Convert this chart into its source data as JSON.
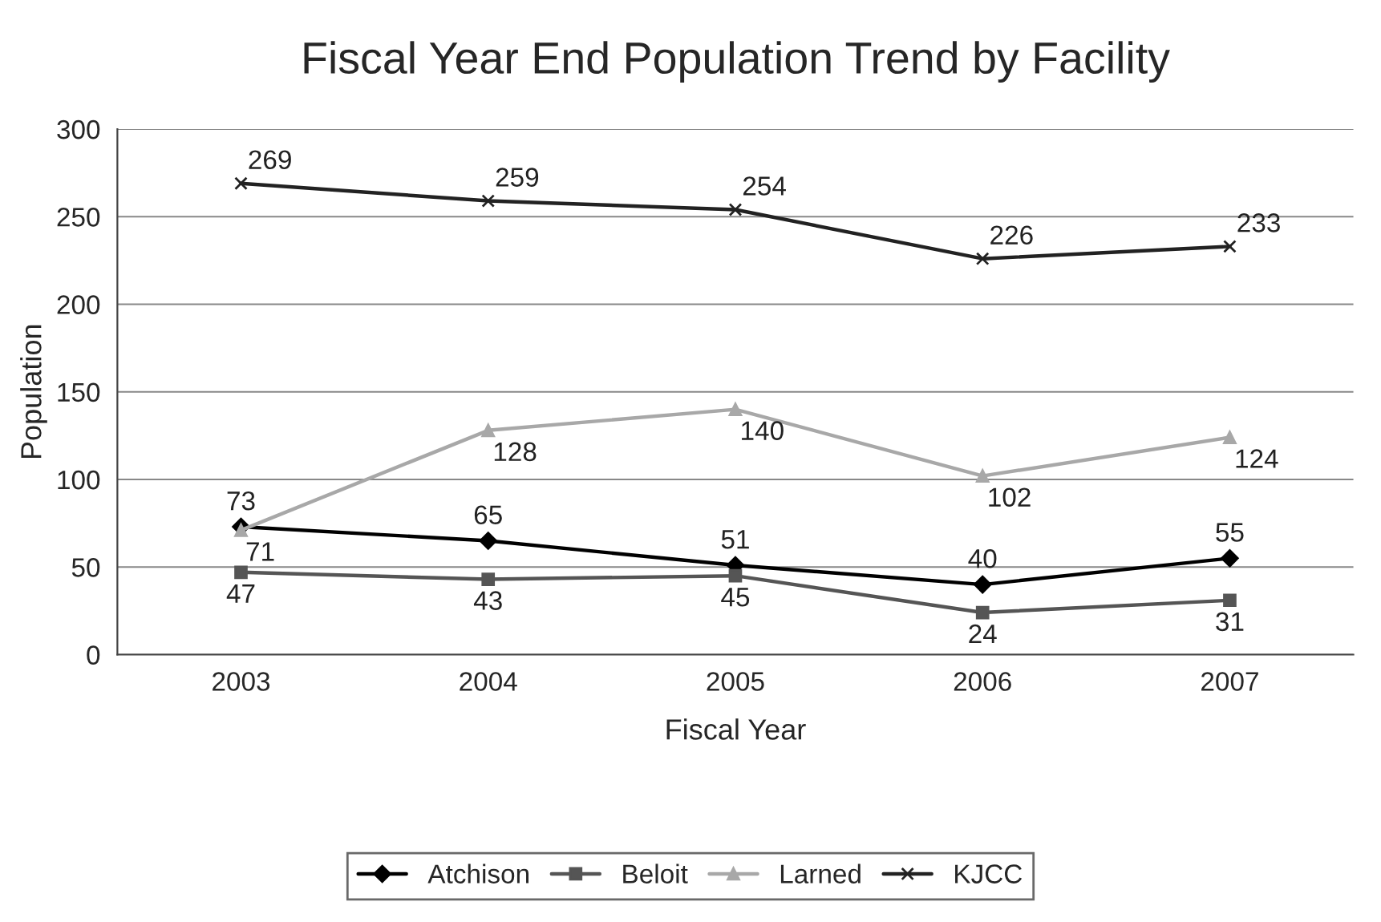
{
  "chart_data": {
    "type": "line",
    "title": "Fiscal Year End Population Trend by Facility",
    "xlabel": "Fiscal Year",
    "ylabel": "Population",
    "categories": [
      "2003",
      "2004",
      "2005",
      "2006",
      "2007"
    ],
    "series": [
      {
        "name": "Atchison",
        "color": "#000000",
        "marker": "diamond",
        "values": [
          73,
          65,
          51,
          40,
          55
        ]
      },
      {
        "name": "Beloit",
        "color": "#555555",
        "marker": "square",
        "values": [
          47,
          43,
          45,
          24,
          31
        ]
      },
      {
        "name": "Larned",
        "color": "#a8a8a8",
        "marker": "triangle",
        "values": [
          71,
          128,
          140,
          102,
          124
        ]
      },
      {
        "name": "KJCC",
        "color": "#222222",
        "marker": "cross",
        "values": [
          269,
          259,
          254,
          226,
          233
        ]
      }
    ],
    "ylim": [
      0,
      300
    ],
    "yticks": [
      0,
      50,
      100,
      150,
      200,
      250,
      300
    ],
    "grid": "y",
    "legend": "bottom",
    "data_labels": true,
    "line_style": "solid"
  }
}
